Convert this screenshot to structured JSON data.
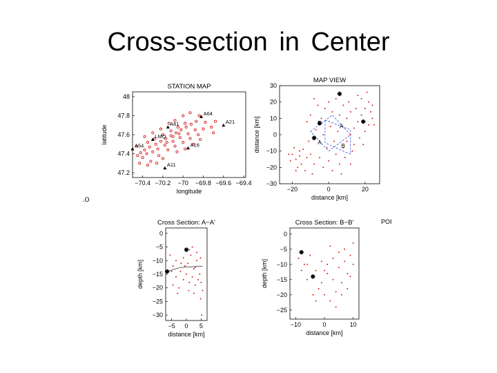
{
  "slide": {
    "title": "Cross-section  in  Center"
  },
  "stray_labels": {
    "left": ".O",
    "right": "POI"
  },
  "colors": {
    "events": "#d42020",
    "station": "#000000",
    "box": "#1a3bd8",
    "axis": "#000000"
  },
  "chart_data": [
    {
      "id": "station-map",
      "type": "scatter",
      "title": "STATION MAP",
      "xlabel": "longitude",
      "ylabel": "latitude",
      "xlim": [
        -70.5,
        -69.38
      ],
      "ylim": [
        47.15,
        48.05
      ],
      "xticks": [
        -70.4,
        -70.2,
        -70.0,
        -69.8,
        -69.6,
        -69.4
      ],
      "xtick_labels": [
        "−70.4",
        "−70.2",
        "−70",
        "−69.8",
        "−69.6",
        "−69.4"
      ],
      "yticks": [
        47.2,
        47.4,
        47.6,
        47.8,
        48.0
      ],
      "ytick_labels": [
        "47.2",
        "47.4",
        "47.6",
        "47.8",
        "48"
      ],
      "stations": [
        {
          "label": "A64",
          "x": -69.82,
          "y": 47.79
        },
        {
          "label": "A21",
          "x": -69.6,
          "y": 47.7
        },
        {
          "label": "A61",
          "x": -70.15,
          "y": 47.68
        },
        {
          "label": "LMQ",
          "x": -70.3,
          "y": 47.55
        },
        {
          "label": "A16",
          "x": -69.95,
          "y": 47.46
        },
        {
          "label": "A54",
          "x": -70.5,
          "y": 47.45
        },
        {
          "label": "A11",
          "x": -70.18,
          "y": 47.25
        }
      ],
      "events": [
        [
          -70.42,
          47.41
        ],
        [
          -70.38,
          47.44
        ],
        [
          -70.33,
          47.47
        ],
        [
          -70.27,
          47.5
        ],
        [
          -70.22,
          47.53
        ],
        [
          -70.17,
          47.56
        ],
        [
          -70.12,
          47.59
        ],
        [
          -70.07,
          47.62
        ],
        [
          -70.02,
          47.65
        ],
        [
          -69.97,
          47.68
        ],
        [
          -69.92,
          47.71
        ],
        [
          -69.87,
          47.74
        ],
        [
          -70.35,
          47.52
        ],
        [
          -70.28,
          47.56
        ],
        [
          -70.2,
          47.6
        ],
        [
          -70.12,
          47.64
        ],
        [
          -70.05,
          47.68
        ],
        [
          -69.98,
          47.72
        ],
        [
          -70.25,
          47.45
        ],
        [
          -70.18,
          47.49
        ],
        [
          -70.1,
          47.53
        ],
        [
          -70.03,
          47.57
        ],
        [
          -69.95,
          47.61
        ],
        [
          -69.88,
          47.65
        ],
        [
          -70.45,
          47.38
        ],
        [
          -70.4,
          47.36
        ],
        [
          -70.36,
          47.4
        ],
        [
          -70.3,
          47.42
        ],
        [
          -70.24,
          47.38
        ],
        [
          -70.15,
          47.44
        ],
        [
          -70.08,
          47.48
        ],
        [
          -70.0,
          47.52
        ],
        [
          -69.93,
          47.56
        ],
        [
          -69.85,
          47.6
        ],
        [
          -69.8,
          47.66
        ],
        [
          -69.78,
          47.73
        ],
        [
          -69.84,
          47.8
        ],
        [
          -70.14,
          47.72
        ],
        [
          -70.08,
          47.75
        ],
        [
          -70.22,
          47.66
        ],
        [
          -70.3,
          47.62
        ],
        [
          -70.38,
          47.58
        ],
        [
          -70.46,
          47.48
        ],
        [
          -70.06,
          47.42
        ],
        [
          -69.98,
          47.45
        ],
        [
          -70.32,
          47.32
        ],
        [
          -70.26,
          47.3
        ],
        [
          -70.2,
          47.35
        ],
        [
          -70.43,
          47.3
        ],
        [
          -70.35,
          47.28
        ],
        [
          -69.9,
          47.5
        ],
        [
          -69.83,
          47.55
        ],
        [
          -69.72,
          47.68
        ],
        [
          -69.68,
          47.74
        ],
        [
          -69.7,
          47.62
        ],
        [
          -70.0,
          47.8
        ],
        [
          -69.93,
          47.83
        ],
        [
          -70.16,
          47.52
        ],
        [
          -70.1,
          47.58
        ],
        [
          -70.04,
          47.61
        ]
      ]
    },
    {
      "id": "map-view",
      "type": "scatter",
      "title": "MAP VIEW",
      "xlabel": "distance [km]",
      "ylabel": "distance [km]",
      "xlim": [
        -27,
        28
      ],
      "ylim": [
        -30,
        30
      ],
      "xticks": [
        -20,
        0,
        20
      ],
      "xtick_labels": [
        "−20",
        "0",
        "20"
      ],
      "yticks": [
        30,
        20,
        10,
        0,
        -10,
        -20,
        -30
      ],
      "ytick_labels": [
        "30",
        "20",
        "10",
        "0",
        "−10",
        "−20",
        "−30"
      ],
      "stations": [
        {
          "label": "",
          "x": 6,
          "y": 25
        },
        {
          "label": "",
          "x": 19,
          "y": 8
        },
        {
          "label": "",
          "x": -8,
          "y": -2
        },
        {
          "label": "",
          "x": -5,
          "y": 7
        }
      ],
      "section_labels": [
        {
          "label": "B",
          "x": -6,
          "y": 6
        },
        {
          "label": "A",
          "x": 6,
          "y": 4
        },
        {
          "label": "A",
          "x": -6,
          "y": -6
        },
        {
          "label": "B",
          "x": 7,
          "y": -8
        }
      ],
      "section_boxes": [
        [
          [
            -10,
            2
          ],
          [
            2,
            12
          ],
          [
            12,
            0
          ],
          [
            0,
            -10
          ]
        ],
        [
          [
            -2,
            9
          ],
          [
            12,
            3
          ],
          [
            12,
            -12
          ],
          [
            -2,
            -5
          ]
        ]
      ],
      "events": [
        [
          -20,
          -12
        ],
        [
          -18,
          -15
        ],
        [
          -16,
          -10
        ],
        [
          -15,
          -18
        ],
        [
          -12,
          -14
        ],
        [
          -19,
          -8
        ],
        [
          -17,
          -20
        ],
        [
          -14,
          -9
        ],
        [
          -21,
          -16
        ],
        [
          -13,
          -22
        ],
        [
          -10,
          -12
        ],
        [
          -16,
          -13
        ],
        [
          -18,
          -22
        ],
        [
          -22,
          -12
        ],
        [
          -8,
          -18
        ],
        [
          -5,
          -14
        ],
        [
          -3,
          -20
        ],
        [
          0,
          -16
        ],
        [
          2,
          -22
        ],
        [
          4,
          -12
        ],
        [
          6,
          -18
        ],
        [
          8,
          -8
        ],
        [
          10,
          -4
        ],
        [
          12,
          0
        ],
        [
          14,
          4
        ],
        [
          16,
          8
        ],
        [
          18,
          12
        ],
        [
          20,
          16
        ],
        [
          22,
          20
        ],
        [
          24,
          18
        ],
        [
          14,
          -6
        ],
        [
          17,
          -2
        ],
        [
          20,
          2
        ],
        [
          22,
          6
        ],
        [
          10,
          10
        ],
        [
          12,
          14
        ],
        [
          8,
          18
        ],
        [
          4,
          22
        ],
        [
          16,
          24
        ],
        [
          21,
          26
        ],
        [
          2,
          14
        ],
        [
          -2,
          16
        ],
        [
          -6,
          18
        ],
        [
          -10,
          12
        ],
        [
          -12,
          8
        ],
        [
          -8,
          22
        ],
        [
          5,
          2
        ],
        [
          1,
          5
        ],
        [
          -3,
          0
        ],
        [
          3,
          -4
        ],
        [
          9,
          -14
        ],
        [
          13,
          -10
        ],
        [
          24,
          10
        ],
        [
          19,
          -6
        ],
        [
          -11,
          -4
        ],
        [
          -7,
          3
        ],
        [
          11,
          20
        ],
        [
          6,
          12
        ],
        [
          -1,
          -8
        ],
        [
          15,
          16
        ],
        [
          18,
          22
        ],
        [
          23,
          14
        ],
        [
          -4,
          10
        ],
        [
          0,
          20
        ],
        [
          7,
          -24
        ],
        [
          -9,
          -24
        ],
        [
          12,
          -18
        ],
        [
          25,
          6
        ]
      ]
    },
    {
      "id": "cross-section-aa",
      "type": "scatter",
      "title": "Cross Section: A−A'",
      "xlabel": "distance [km]",
      "ylabel": "depth [km]",
      "xlim": [
        -7,
        7
      ],
      "ylim": [
        -32,
        2
      ],
      "xticks": [
        -5,
        0,
        5
      ],
      "xtick_labels": [
        "−5",
        "0",
        "5"
      ],
      "yticks": [
        0,
        -5,
        -10,
        -15,
        -20,
        -25,
        -30
      ],
      "ytick_labels": [
        "0",
        "−5",
        "−10",
        "−15",
        "−20",
        "−25",
        "−30"
      ],
      "stations": [
        {
          "label": "",
          "x": 0,
          "y": -6
        },
        {
          "label": "",
          "x": -6.5,
          "y": -14
        }
      ],
      "reference_line": [
        [
          -6.5,
          -14
        ],
        [
          -2,
          -12.5
        ],
        [
          5.5,
          -12
        ]
      ],
      "events": [
        [
          -5.5,
          -8
        ],
        [
          -4.5,
          -12
        ],
        [
          -3.5,
          -10
        ],
        [
          -2,
          -14
        ],
        [
          -1,
          -9
        ],
        [
          0.5,
          -11
        ],
        [
          1.5,
          -8
        ],
        [
          2.5,
          -13
        ],
        [
          3.5,
          -10
        ],
        [
          4.5,
          -15
        ],
        [
          5,
          -18
        ],
        [
          5.5,
          -21
        ],
        [
          4,
          -17
        ],
        [
          3,
          -19
        ],
        [
          2,
          -16
        ],
        [
          1,
          -18
        ],
        [
          0,
          -15
        ],
        [
          -1,
          -17
        ],
        [
          -2.5,
          -20
        ],
        [
          -3.5,
          -16
        ],
        [
          -4.5,
          -19
        ],
        [
          -5,
          -14
        ],
        [
          1,
          -6
        ],
        [
          2,
          -5
        ],
        [
          3.5,
          -7
        ],
        [
          4.8,
          -9
        ],
        [
          -0.5,
          -12
        ],
        [
          2.5,
          -22
        ],
        [
          4.8,
          -24
        ],
        [
          -3,
          -22
        ],
        [
          5.2,
          -30
        ],
        [
          0.8,
          -21
        ],
        [
          -1.8,
          -11
        ],
        [
          3,
          -12.5
        ]
      ]
    },
    {
      "id": "cross-section-bb",
      "type": "scatter",
      "title": "Cross Section: B−B'",
      "xlabel": "distance [km]",
      "ylabel": "depth [km]",
      "xlim": [
        -12,
        12
      ],
      "ylim": [
        -28,
        2
      ],
      "xticks": [
        -10,
        0,
        10
      ],
      "xtick_labels": [
        "−10",
        "0",
        "10"
      ],
      "yticks": [
        0,
        -5,
        -10,
        -15,
        -20,
        -25
      ],
      "ytick_labels": [
        "0",
        "−5",
        "−10",
        "−15",
        "−20",
        "−25"
      ],
      "stations": [
        {
          "label": "",
          "x": -8,
          "y": -6
        },
        {
          "label": "",
          "x": -4,
          "y": -14
        }
      ],
      "events": [
        [
          -9,
          -8
        ],
        [
          -7,
          -10
        ],
        [
          -5,
          -7
        ],
        [
          -3,
          -12
        ],
        [
          -1,
          -16
        ],
        [
          1,
          -10
        ],
        [
          3,
          -8
        ],
        [
          5,
          -11
        ],
        [
          7,
          -9
        ],
        [
          9,
          -7
        ],
        [
          10,
          -10
        ],
        [
          8,
          -13
        ],
        [
          6,
          -16
        ],
        [
          4,
          -19
        ],
        [
          2,
          -22
        ],
        [
          0,
          -20
        ],
        [
          -2,
          -18
        ],
        [
          -4,
          -20
        ],
        [
          -6,
          -15
        ],
        [
          -8,
          -12
        ],
        [
          5,
          -6
        ],
        [
          7,
          -5
        ],
        [
          9,
          -14
        ],
        [
          3,
          -15
        ],
        [
          1,
          -13
        ],
        [
          -1,
          -9
        ],
        [
          4,
          -24
        ],
        [
          -3,
          -22
        ],
        [
          6,
          -20
        ],
        [
          2,
          -4
        ],
        [
          10,
          -3
        ],
        [
          8,
          -18
        ],
        [
          -6,
          -10
        ],
        [
          0,
          -12
        ]
      ]
    }
  ]
}
